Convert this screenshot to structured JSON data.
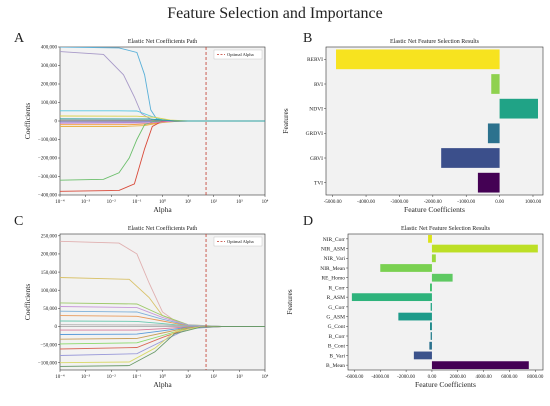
{
  "figure": {
    "title": "Feature Selection and Importance"
  },
  "chart_data": [
    {
      "panel": "A",
      "type": "line",
      "title": "Elastic Net Coefficients Path",
      "xlabel": "Alpha",
      "ylabel": "Coefficients",
      "xscale": "log",
      "xlim": [
        0.0001,
        10000
      ],
      "ylim": [
        -400000,
        400000
      ],
      "x_ticks": [
        "10⁻⁴",
        "10⁻³",
        "10⁻²",
        "10⁻¹",
        "10⁰",
        "10¹",
        "10²",
        "10³",
        "10⁴"
      ],
      "y_ticks": [
        "400,000",
        "300,000",
        "200,000",
        "100,000",
        "0",
        "−100,000",
        "−200,000",
        "−300,000",
        "−400,000"
      ],
      "optimal_alpha": 50,
      "legend": "Optimal Alpha",
      "legend_loc": "top-right",
      "background": "#f2f2f2",
      "grid": false,
      "series": [
        {
          "color": "#5ab0d8",
          "points": [
            [
              0.0001,
              400000
            ],
            [
              0.02,
              395000
            ],
            [
              0.1,
              370000
            ],
            [
              0.2,
              250000
            ],
            [
              0.35,
              60000
            ],
            [
              0.6,
              10000
            ],
            [
              3,
              0
            ]
          ]
        },
        {
          "color": "#a89ac8",
          "points": [
            [
              0.0001,
              375000
            ],
            [
              0.005,
              360000
            ],
            [
              0.03,
              250000
            ],
            [
              0.08,
              130000
            ],
            [
              0.15,
              40000
            ],
            [
              0.4,
              5000
            ],
            [
              3,
              0
            ]
          ]
        },
        {
          "color": "#54c7e0",
          "points": [
            [
              0.0001,
              55000
            ],
            [
              0.02,
              55000
            ],
            [
              0.1,
              54000
            ],
            [
              0.3,
              30000
            ],
            [
              1,
              5000
            ],
            [
              5,
              0
            ]
          ]
        },
        {
          "color": "#d9d24a",
          "points": [
            [
              0.0001,
              27000
            ],
            [
              0.1,
              26000
            ],
            [
              0.5,
              20000
            ],
            [
              2,
              5000
            ],
            [
              10,
              0
            ]
          ]
        },
        {
          "color": "#f29a3a",
          "points": [
            [
              0.0001,
              -20000
            ],
            [
              0.05,
              -20000
            ],
            [
              0.3,
              -15000
            ],
            [
              2,
              -3000
            ],
            [
              10,
              0
            ]
          ]
        },
        {
          "color": "#e8b44a",
          "points": [
            [
              0.0001,
              -30000
            ],
            [
              0.03,
              -30000
            ],
            [
              0.2,
              -25000
            ],
            [
              1,
              -8000
            ],
            [
              5,
              0
            ]
          ]
        },
        {
          "color": "#7f7fd6",
          "points": [
            [
              0.0001,
              -5000
            ],
            [
              0.1,
              -5000
            ],
            [
              1,
              -2000
            ],
            [
              10,
              0
            ]
          ]
        },
        {
          "color": "#6cbf6c",
          "points": [
            [
              0.0001,
              -320000
            ],
            [
              0.005,
              -315000
            ],
            [
              0.02,
              -280000
            ],
            [
              0.05,
              -200000
            ],
            [
              0.1,
              -100000
            ],
            [
              0.2,
              -20000
            ],
            [
              0.5,
              0
            ],
            [
              3,
              0
            ]
          ]
        },
        {
          "color": "#d94a3a",
          "points": [
            [
              0.0001,
              -380000
            ],
            [
              0.02,
              -375000
            ],
            [
              0.08,
              -340000
            ],
            [
              0.2,
              -150000
            ],
            [
              0.4,
              -30000
            ],
            [
              1,
              0
            ],
            [
              3,
              0
            ]
          ]
        },
        {
          "color": "#8a8a8a",
          "points": [
            [
              0.0001,
              5000
            ],
            [
              0.5,
              4000
            ],
            [
              5,
              0
            ]
          ]
        },
        {
          "color": "#c77ac7",
          "points": [
            [
              0.0001,
              -12000
            ],
            [
              0.3,
              -10000
            ],
            [
              3,
              0
            ]
          ]
        },
        {
          "color": "#2ca0a0",
          "points": [
            [
              0.0001,
              12000
            ],
            [
              0.3,
              11000
            ],
            [
              3,
              0
            ]
          ]
        }
      ]
    },
    {
      "panel": "B",
      "type": "bar",
      "orientation": "horizontal",
      "title": "Elastic Net Feature Selection Results",
      "xlabel": "Feature Coefficients",
      "ylabel": "Features",
      "xlim": [
        -5200,
        1300
      ],
      "x_ticks": [
        -5000,
        -4000,
        -3000,
        -2000,
        -1000,
        0,
        1000
      ],
      "categories": [
        "RERVI",
        "RVI",
        "NDVI",
        "GRDVI",
        "GRVI",
        "TVI"
      ],
      "values": [
        -4900,
        -250,
        1150,
        -350,
        -1750,
        -650
      ],
      "colors": [
        "#f7e31f",
        "#8fd14f",
        "#20a386",
        "#2c728e",
        "#3b4f8b",
        "#440154"
      ],
      "background": "#f2f2f2"
    },
    {
      "panel": "C",
      "type": "line",
      "title": "Elastic Net Coefficients Path",
      "xlabel": "Alpha",
      "ylabel": "Coefficients",
      "xscale": "log",
      "xlim": [
        0.0001,
        10000
      ],
      "ylim": [
        -120000,
        255000
      ],
      "x_ticks": [
        "10⁻⁴",
        "10⁻³",
        "10⁻²",
        "10⁻¹",
        "10⁰",
        "10¹",
        "10²",
        "10³",
        "10⁴"
      ],
      "y_ticks": [
        "250,000",
        "200,000",
        "150,000",
        "100,000",
        "50,000",
        "0",
        "−50,000",
        "−100,000"
      ],
      "optimal_alpha": 50,
      "legend": "Optimal Alpha",
      "legend_loc": "top-right",
      "background": "#f2f2f2",
      "grid": false,
      "series": [
        {
          "color": "#e0b0b0",
          "points": [
            [
              0.0001,
              235000
            ],
            [
              0.02,
              230000
            ],
            [
              0.1,
              200000
            ],
            [
              0.3,
              120000
            ],
            [
              1,
              40000
            ],
            [
              5,
              5000
            ],
            [
              100,
              0
            ]
          ]
        },
        {
          "color": "#d9c26a",
          "points": [
            [
              0.0001,
              135000
            ],
            [
              0.05,
              130000
            ],
            [
              0.3,
              80000
            ],
            [
              1,
              30000
            ],
            [
              10,
              3000
            ],
            [
              100,
              0
            ]
          ]
        },
        {
          "color": "#9ec96a",
          "points": [
            [
              0.0001,
              65000
            ],
            [
              0.1,
              62000
            ],
            [
              1,
              30000
            ],
            [
              10,
              5000
            ],
            [
              200,
              0
            ]
          ]
        },
        {
          "color": "#c799d9",
          "points": [
            [
              0.0001,
              55000
            ],
            [
              0.1,
              52000
            ],
            [
              1,
              25000
            ],
            [
              10,
              4000
            ],
            [
              200,
              0
            ]
          ]
        },
        {
          "color": "#7fb0d9",
          "points": [
            [
              0.0001,
              42000
            ],
            [
              0.1,
              40000
            ],
            [
              1,
              20000
            ],
            [
              10,
              3000
            ],
            [
              200,
              0
            ]
          ]
        },
        {
          "color": "#e89a5a",
          "points": [
            [
              0.0001,
              30000
            ],
            [
              0.1,
              28000
            ],
            [
              1,
              15000
            ],
            [
              10,
              2000
            ],
            [
              200,
              0
            ]
          ]
        },
        {
          "color": "#6ac9b0",
          "points": [
            [
              0.0001,
              15000
            ],
            [
              0.1,
              14000
            ],
            [
              1,
              8000
            ],
            [
              10,
              1500
            ],
            [
              200,
              0
            ]
          ]
        },
        {
          "color": "#b0b0b0",
          "points": [
            [
              0.0001,
              5000
            ],
            [
              1,
              4000
            ],
            [
              10,
              1000
            ],
            [
              200,
              0
            ]
          ]
        },
        {
          "color": "#d97a9a",
          "points": [
            [
              0.0001,
              -10000
            ],
            [
              0.1,
              -10000
            ],
            [
              1,
              -6000
            ],
            [
              10,
              -1000
            ],
            [
              200,
              0
            ]
          ]
        },
        {
          "color": "#5a9ad9",
          "points": [
            [
              0.0001,
              -22000
            ],
            [
              0.1,
              -21000
            ],
            [
              1,
              -12000
            ],
            [
              10,
              -2000
            ],
            [
              200,
              0
            ]
          ]
        },
        {
          "color": "#c9a05a",
          "points": [
            [
              0.0001,
              -35000
            ],
            [
              0.1,
              -33000
            ],
            [
              1,
              -18000
            ],
            [
              10,
              -3000
            ],
            [
              200,
              0
            ]
          ]
        },
        {
          "color": "#8ad96a",
          "points": [
            [
              0.0001,
              -48000
            ],
            [
              0.1,
              -45000
            ],
            [
              1,
              -25000
            ],
            [
              10,
              -4000
            ],
            [
              200,
              0
            ]
          ]
        },
        {
          "color": "#d96a5a",
          "points": [
            [
              0.0001,
              -62000
            ],
            [
              0.1,
              -58000
            ],
            [
              1,
              -30000
            ],
            [
              10,
              -5000
            ],
            [
              200,
              0
            ]
          ]
        },
        {
          "color": "#9a9ad9",
          "points": [
            [
              0.0001,
              -80000
            ],
            [
              0.1,
              -75000
            ],
            [
              1,
              -40000
            ],
            [
              10,
              -6000
            ],
            [
              200,
              0
            ]
          ]
        },
        {
          "color": "#d9d96a",
          "points": [
            [
              0.0001,
              -100000
            ],
            [
              0.05,
              -98000
            ],
            [
              0.5,
              -60000
            ],
            [
              3,
              -15000
            ],
            [
              30,
              -1000
            ],
            [
              200,
              0
            ]
          ]
        },
        {
          "color": "#6a9a6a",
          "points": [
            [
              0.0001,
              -110000
            ],
            [
              0.05,
              -108000
            ],
            [
              0.5,
              -70000
            ],
            [
              3,
              -20000
            ],
            [
              30,
              -2000
            ],
            [
              200,
              0
            ]
          ]
        }
      ]
    },
    {
      "panel": "D",
      "type": "bar",
      "orientation": "horizontal",
      "title": "Elastic Net Feature Selection Results",
      "xlabel": "Feature Coefficients",
      "ylabel": "Features",
      "xlim": [
        -6500,
        8600
      ],
      "x_ticks": [
        -6000,
        -4000,
        -2000,
        0,
        2000,
        4000,
        6000,
        8000
      ],
      "categories": [
        "NIR_Corr",
        "NIR_ASM",
        "NIR_Vari",
        "NIR_Mean",
        "RE_Homo",
        "R_Corr",
        "R_ASM",
        "G_Corr",
        "G_ASM",
        "G_Cont",
        "B_Corr",
        "B_Cont",
        "B_Vari",
        "B_Mean"
      ],
      "values": [
        -300,
        8200,
        300,
        -4000,
        1600,
        -150,
        -6200,
        -100,
        -2600,
        -150,
        -100,
        -200,
        -1400,
        7500
      ],
      "colors": [
        "#dde318",
        "#bddf26",
        "#9bd93c",
        "#7ad151",
        "#5ec962",
        "#44bf70",
        "#2eb37c",
        "#21a685",
        "#1e9b8a",
        "#228c8d",
        "#277f8e",
        "#2c728e",
        "#3b528b",
        "#440154"
      ],
      "background": "#f2f2f2"
    }
  ]
}
